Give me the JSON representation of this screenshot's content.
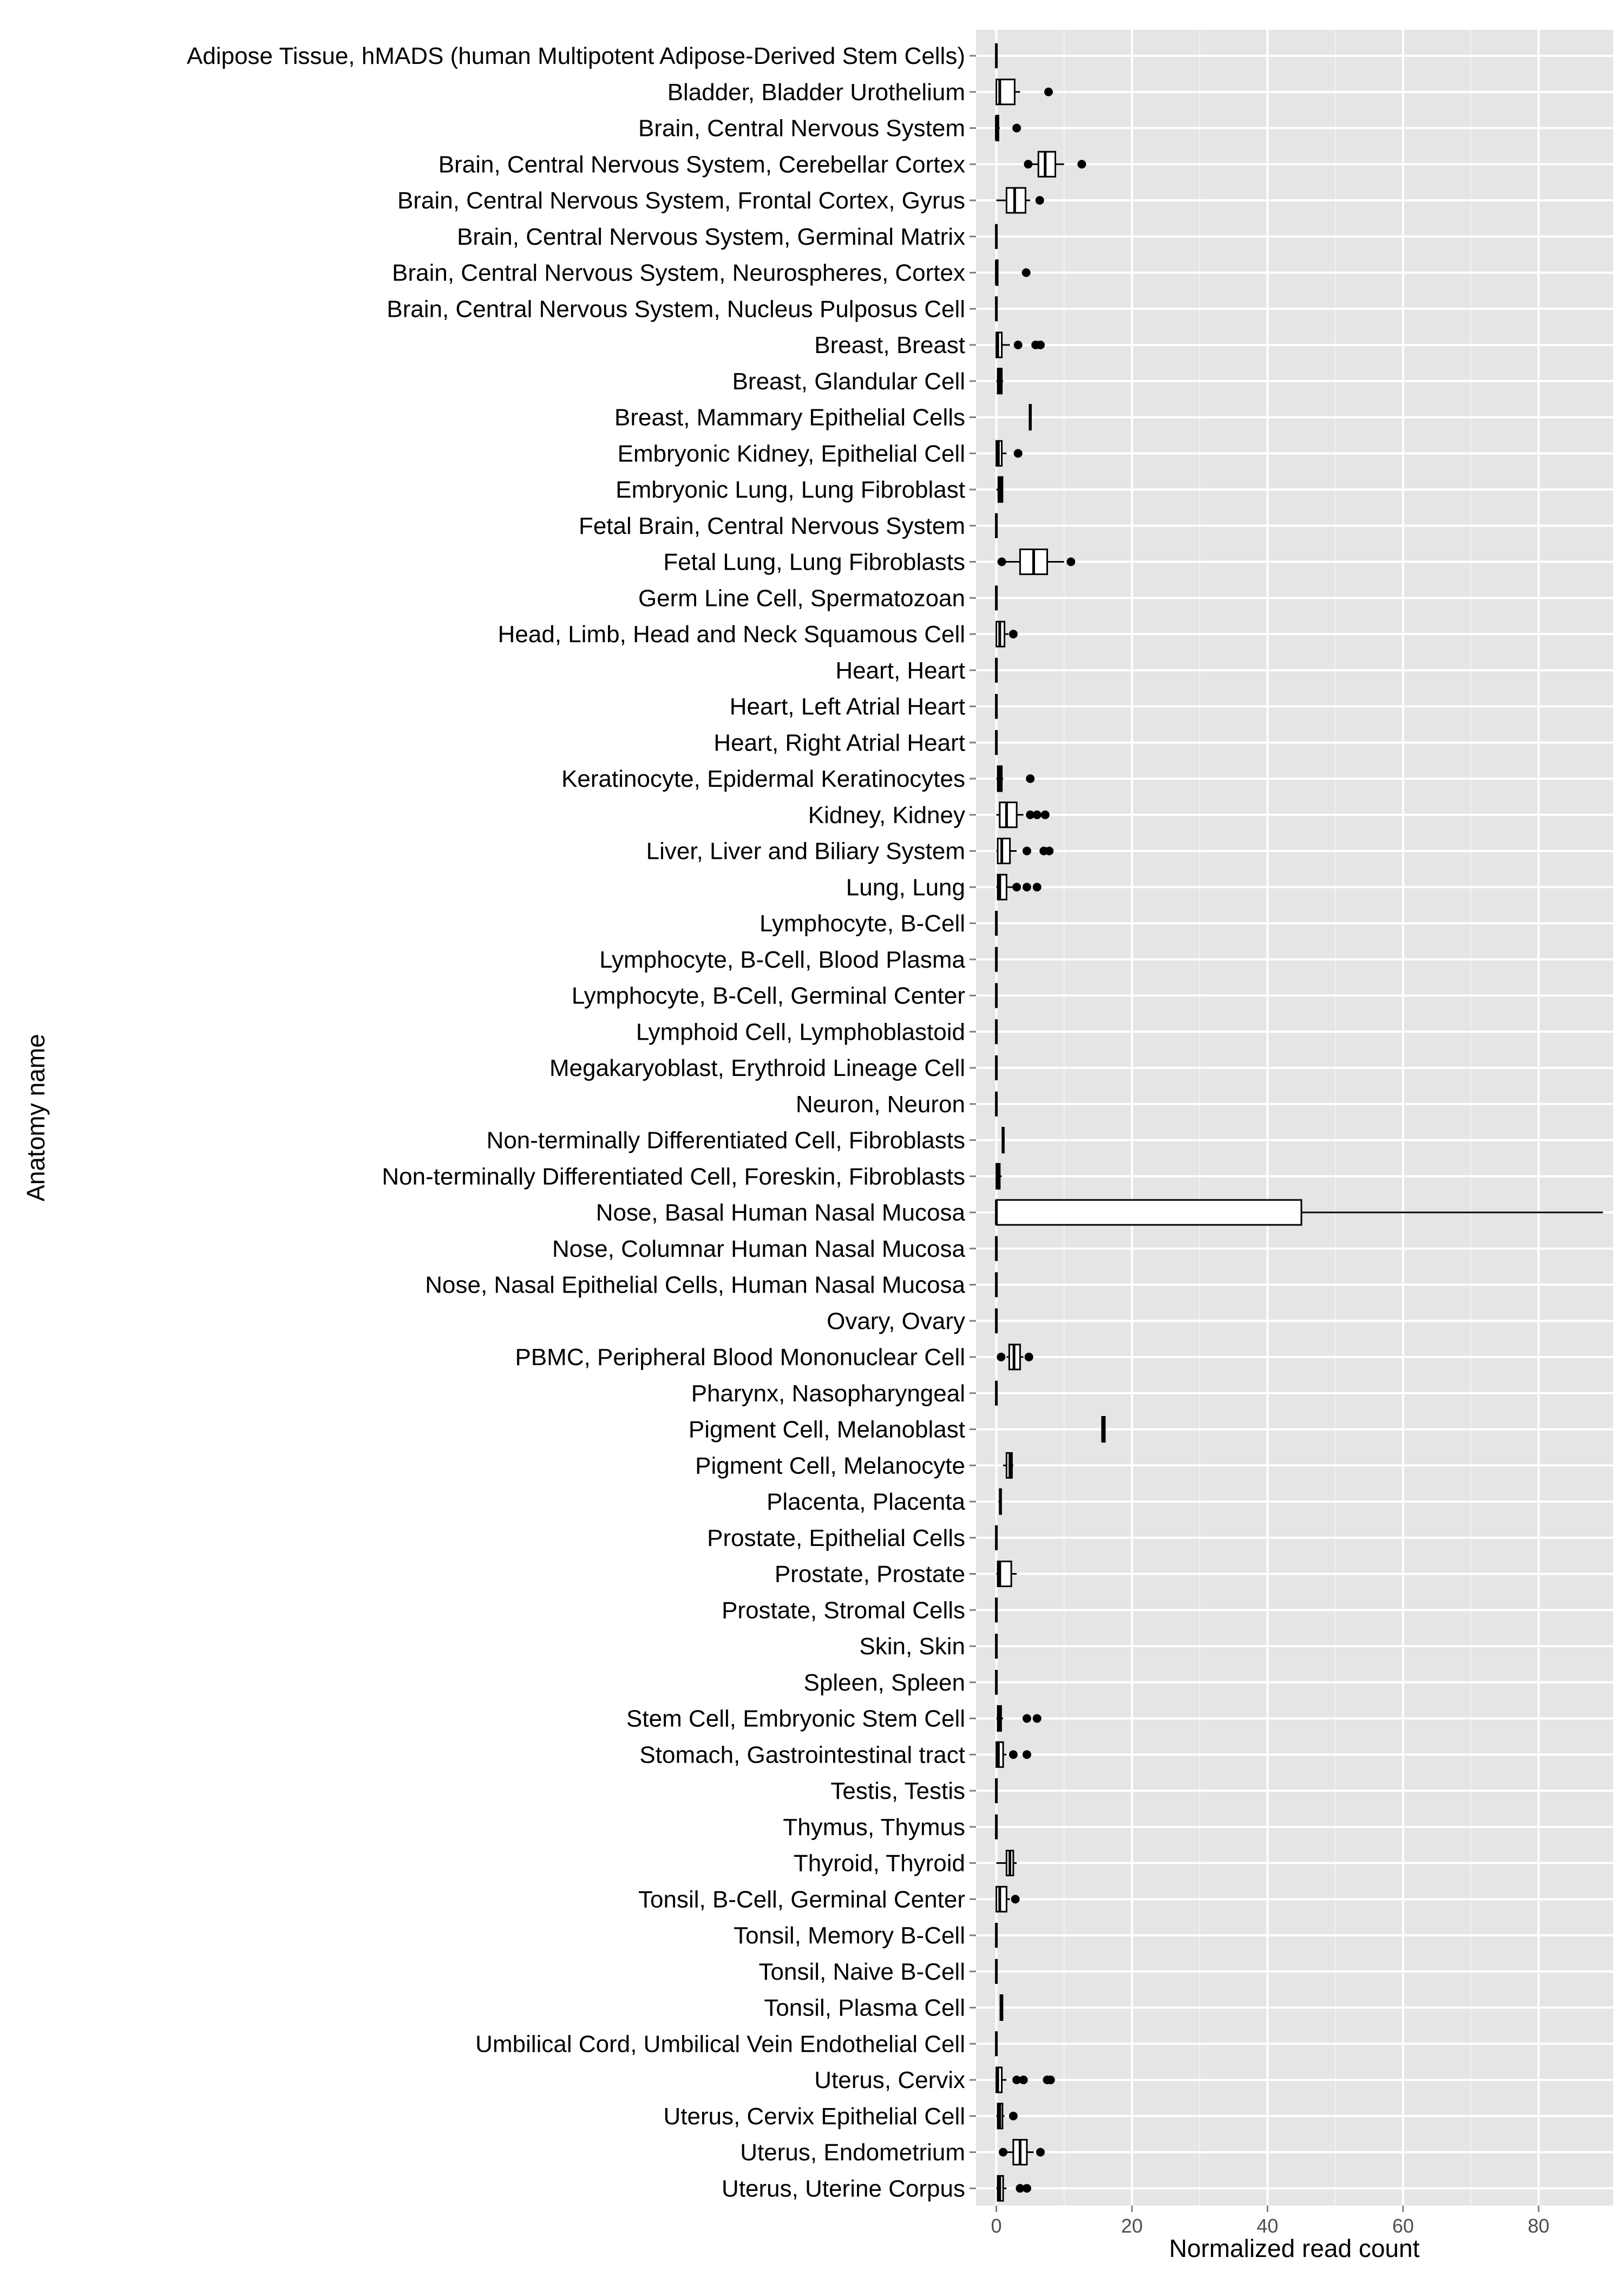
{
  "chart_data": {
    "type": "boxplot",
    "orientation": "horizontal",
    "xlabel": "Normalized read count",
    "ylabel": "Anatomy name",
    "xlim": [
      -3,
      91
    ],
    "xticks": [
      0,
      20,
      40,
      60,
      80
    ],
    "grid": true,
    "legend": "none",
    "colors": {
      "panel_background": "#e5e5e5",
      "grid_major": "#ffffff",
      "grid_minor": "#f2f2f2",
      "box_fill": "#ffffff",
      "box_stroke": "#000000",
      "point": "#000000"
    },
    "groups": [
      {
        "label": "Adipose Tissue, hMADS (human Multipotent Adipose-Derived Stem Cells)",
        "stats": [
          0,
          0,
          0,
          0,
          0
        ],
        "outliers": []
      },
      {
        "label": "Bladder, Bladder Urothelium",
        "stats": [
          0,
          0,
          0.5,
          2.7,
          3.5
        ],
        "outliers": [
          7.7
        ]
      },
      {
        "label": "Brain, Central Nervous System",
        "stats": [
          0,
          0,
          0,
          0.3,
          0.5
        ],
        "outliers": [
          3.0
        ]
      },
      {
        "label": "Brain, Central Nervous System, Cerebellar Cortex",
        "stats": [
          5,
          6.2,
          7.2,
          8.7,
          10
        ],
        "outliers": [
          4.7,
          12.6
        ]
      },
      {
        "label": "Brain, Central Nervous System, Frontal Cortex, Gyrus",
        "stats": [
          0,
          1.5,
          2.7,
          4.3,
          5
        ],
        "outliers": [
          6.4
        ]
      },
      {
        "label": "Brain, Central Nervous System, Germinal Matrix",
        "stats": [
          0,
          0,
          0,
          0,
          0
        ],
        "outliers": []
      },
      {
        "label": "Brain, Central Nervous System, Neurospheres, Cortex",
        "stats": [
          0,
          0,
          0,
          0.2,
          0.3
        ],
        "outliers": [
          4.4
        ]
      },
      {
        "label": "Brain, Central Nervous System, Nucleus Pulposus Cell",
        "stats": [
          0,
          0,
          0,
          0,
          0
        ],
        "outliers": []
      },
      {
        "label": "Breast, Breast",
        "stats": [
          0,
          0,
          0.2,
          0.8,
          2
        ],
        "outliers": [
          3.2,
          5.8,
          6.5
        ]
      },
      {
        "label": "Breast, Glandular Cell",
        "stats": [
          0,
          0.2,
          0.5,
          0.8,
          1
        ],
        "outliers": []
      },
      {
        "label": "Breast, Mammary Epithelial Cells",
        "stats": [
          4.8,
          4.9,
          5.0,
          5.1,
          5.2
        ],
        "outliers": []
      },
      {
        "label": "Embryonic Kidney,  Epithelial Cell",
        "stats": [
          0,
          0,
          0.3,
          0.8,
          1.5
        ],
        "outliers": [
          3.2
        ]
      },
      {
        "label": "Embryonic Lung, Lung Fibroblast",
        "stats": [
          0,
          0.3,
          0.6,
          0.9,
          1
        ],
        "outliers": []
      },
      {
        "label": "Fetal Brain, Central Nervous System",
        "stats": [
          0,
          0,
          0,
          0,
          0
        ],
        "outliers": []
      },
      {
        "label": "Fetal Lung, Lung Fibroblasts",
        "stats": [
          1,
          3.5,
          5.5,
          7.5,
          10
        ],
        "outliers": [
          0.8,
          11.0
        ]
      },
      {
        "label": "Germ Line Cell, Spermatozoan",
        "stats": [
          0,
          0,
          0,
          0,
          0
        ],
        "outliers": []
      },
      {
        "label": "Head, Limb, Head and Neck Squamous Cell",
        "stats": [
          0,
          0,
          0.5,
          1.2,
          1.8
        ],
        "outliers": [
          2.5
        ]
      },
      {
        "label": "Heart, Heart",
        "stats": [
          0,
          0,
          0,
          0,
          0
        ],
        "outliers": []
      },
      {
        "label": "Heart, Left Atrial Heart",
        "stats": [
          0,
          0,
          0,
          0,
          0
        ],
        "outliers": []
      },
      {
        "label": "Heart, Right Atrial Heart",
        "stats": [
          0,
          0,
          0,
          0,
          0
        ],
        "outliers": []
      },
      {
        "label": "Keratinocyte, Epidermal Keratinocytes",
        "stats": [
          0,
          0.2,
          0.5,
          0.8,
          1
        ],
        "outliers": [
          5.0
        ]
      },
      {
        "label": "Kidney, Kidney",
        "stats": [
          0,
          0.5,
          1.5,
          3.0,
          4
        ],
        "outliers": [
          5.0,
          6.0,
          7.2
        ]
      },
      {
        "label": "Liver, Liver and Biliary System",
        "stats": [
          0,
          0.2,
          0.8,
          2.0,
          3
        ],
        "outliers": [
          4.5,
          7.0,
          7.8
        ]
      },
      {
        "label": "Lung, Lung",
        "stats": [
          0,
          0.2,
          0.5,
          1.5,
          2.5
        ],
        "outliers": [
          3.0,
          4.5,
          6.0
        ]
      },
      {
        "label": "Lymphocyte, B-Cell",
        "stats": [
          0,
          0,
          0,
          0,
          0
        ],
        "outliers": []
      },
      {
        "label": "Lymphocyte, B-Cell, Blood Plasma",
        "stats": [
          0,
          0,
          0,
          0,
          0
        ],
        "outliers": []
      },
      {
        "label": "Lymphocyte, B-Cell, Germinal Center",
        "stats": [
          0,
          0,
          0,
          0,
          0
        ],
        "outliers": []
      },
      {
        "label": "Lymphoid Cell, Lymphoblastoid",
        "stats": [
          0,
          0,
          0,
          0,
          0
        ],
        "outliers": []
      },
      {
        "label": "Megakaryoblast, Erythroid Lineage Cell",
        "stats": [
          0,
          0,
          0,
          0,
          0
        ],
        "outliers": []
      },
      {
        "label": "Neuron, Neuron",
        "stats": [
          0,
          0,
          0,
          0,
          0
        ],
        "outliers": []
      },
      {
        "label": "Non-terminally Differentiated Cell, Fibroblasts",
        "stats": [
          0.8,
          0.9,
          1.0,
          1.1,
          1.2
        ],
        "outliers": []
      },
      {
        "label": "Non-terminally Differentiated Cell, Foreskin, Fibroblasts",
        "stats": [
          0,
          0,
          0.2,
          0.5,
          0.8
        ],
        "outliers": []
      },
      {
        "label": "Nose, Basal Human Nasal Mucosa",
        "stats": [
          0,
          0,
          0,
          45,
          89.5
        ],
        "outliers": []
      },
      {
        "label": "Nose, Columnar Human Nasal Mucosa",
        "stats": [
          0,
          0,
          0,
          0,
          0
        ],
        "outliers": []
      },
      {
        "label": "Nose, Nasal Epithelial Cells, Human Nasal Mucosa",
        "stats": [
          0,
          0,
          0,
          0,
          0
        ],
        "outliers": []
      },
      {
        "label": "Ovary, Ovary",
        "stats": [
          0,
          0,
          0,
          0,
          0
        ],
        "outliers": []
      },
      {
        "label": "PBMC, Peripheral Blood Mononuclear Cell ",
        "stats": [
          1.5,
          1.9,
          2.6,
          3.5,
          4.0
        ],
        "outliers": [
          0.7,
          4.8
        ]
      },
      {
        "label": "Pharynx, Nasopharyngeal",
        "stats": [
          0,
          0,
          0,
          0,
          0
        ],
        "outliers": []
      },
      {
        "label": "Pigment Cell, Melanoblast",
        "stats": [
          15.5,
          15.6,
          15.8,
          16.0,
          16.1
        ],
        "outliers": []
      },
      {
        "label": "Pigment Cell, Melanocyte",
        "stats": [
          1.0,
          1.5,
          2.0,
          2.3,
          2.5
        ],
        "outliers": []
      },
      {
        "label": "Placenta, Placenta",
        "stats": [
          0.3,
          0.5,
          0.6,
          0.7,
          0.8
        ],
        "outliers": []
      },
      {
        "label": "Prostate, Epithelial Cells",
        "stats": [
          0,
          0,
          0,
          0,
          0
        ],
        "outliers": []
      },
      {
        "label": "Prostate, Prostate",
        "stats": [
          0,
          0.2,
          0.5,
          2.2,
          3.0
        ],
        "outliers": []
      },
      {
        "label": "Prostate, Stromal Cells",
        "stats": [
          0,
          0,
          0,
          0,
          0
        ],
        "outliers": []
      },
      {
        "label": "Skin, Skin",
        "stats": [
          0,
          0,
          0,
          0,
          0
        ],
        "outliers": []
      },
      {
        "label": "Spleen, Spleen",
        "stats": [
          0,
          0,
          0,
          0,
          0
        ],
        "outliers": []
      },
      {
        "label": "Stem Cell, Embryonic Stem Cell",
        "stats": [
          0,
          0.2,
          0.4,
          0.7,
          1.0
        ],
        "outliers": [
          4.5,
          6.0
        ]
      },
      {
        "label": "Stomach, Gastrointestinal tract",
        "stats": [
          0,
          0,
          0.3,
          1.0,
          1.5
        ],
        "outliers": [
          2.5,
          4.5
        ]
      },
      {
        "label": "Testis, Testis",
        "stats": [
          0,
          0,
          0,
          0,
          0
        ],
        "outliers": []
      },
      {
        "label": "Thymus, Thymus",
        "stats": [
          0,
          0,
          0,
          0,
          0
        ],
        "outliers": []
      },
      {
        "label": "Thyroid, Thyroid",
        "stats": [
          0,
          1.5,
          2.0,
          2.5,
          3.0
        ],
        "outliers": []
      },
      {
        "label": "Tonsil, B-Cell, Germinal Center",
        "stats": [
          0,
          0,
          0.5,
          1.5,
          2.0
        ],
        "outliers": [
          2.8
        ]
      },
      {
        "label": "Tonsil, Memory B-Cell",
        "stats": [
          0,
          0,
          0,
          0,
          0
        ],
        "outliers": []
      },
      {
        "label": "Tonsil, Naive B-Cell",
        "stats": [
          0,
          0,
          0,
          0,
          0
        ],
        "outliers": []
      },
      {
        "label": "Tonsil, Plasma Cell",
        "stats": [
          0.5,
          0.6,
          0.8,
          0.9,
          1.0
        ],
        "outliers": []
      },
      {
        "label": "Umbilical Cord, Umbilical Vein Endothelial Cell",
        "stats": [
          0,
          0,
          0,
          0,
          0
        ],
        "outliers": []
      },
      {
        "label": "Uterus, Cervix",
        "stats": [
          0,
          0,
          0.2,
          0.8,
          1.5
        ],
        "outliers": [
          3.0,
          4.0,
          7.5,
          8.0
        ]
      },
      {
        "label": "Uterus, Cervix Epithelial Cell",
        "stats": [
          0,
          0.2,
          0.5,
          0.9,
          1.2
        ],
        "outliers": [
          2.5
        ]
      },
      {
        "label": "Uterus, Endometrium",
        "stats": [
          1.5,
          2.5,
          3.5,
          4.5,
          5.5
        ],
        "outliers": [
          1.0,
          6.5
        ]
      },
      {
        "label": "Uterus, Uterine Corpus",
        "stats": [
          0,
          0.2,
          0.5,
          1.0,
          1.5
        ],
        "outliers": [
          3.5,
          4.5
        ]
      }
    ]
  }
}
